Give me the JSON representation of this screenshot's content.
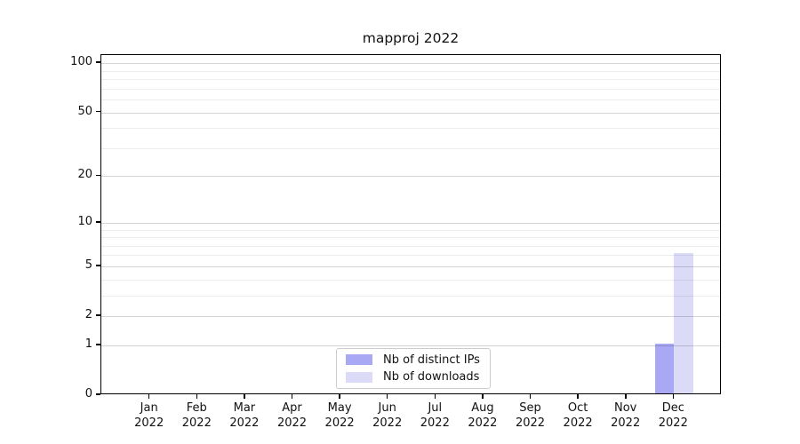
{
  "title": "mapproj 2022",
  "chart_data": {
    "type": "bar",
    "title": "mapproj 2022",
    "categories": [
      "Jan",
      "Feb",
      "Mar",
      "Apr",
      "May",
      "Jun",
      "Jul",
      "Aug",
      "Sep",
      "Oct",
      "Nov",
      "Dec"
    ],
    "year_label": "2022",
    "series": [
      {
        "name": "Nb of distinct IPs",
        "color": "#a8a8f5",
        "values": [
          0,
          0,
          0,
          0,
          0,
          0,
          0,
          0,
          0,
          0,
          0,
          1
        ]
      },
      {
        "name": "Nb of downloads",
        "color": "#dbdbf8",
        "values": [
          0,
          0,
          0,
          0,
          0,
          0,
          0,
          0,
          0,
          0,
          0,
          6
        ]
      }
    ],
    "xlabel": "",
    "ylabel": "",
    "yscale": "log1p",
    "ylim": [
      0,
      112
    ],
    "yticks": [
      0,
      1,
      2,
      5,
      10,
      20,
      50,
      100
    ],
    "minor_yticks": [
      3,
      4,
      6,
      7,
      8,
      9,
      30,
      40,
      60,
      70,
      80,
      90
    ],
    "grid": "both",
    "legend_position": "lower center"
  },
  "colors": {
    "background": "#ffffff",
    "axis": "#000000",
    "text": "#1a1a1a",
    "major_grid": "#d6d6d6",
    "minor_grid": "#ececec",
    "legend_border": "#cccccc"
  }
}
